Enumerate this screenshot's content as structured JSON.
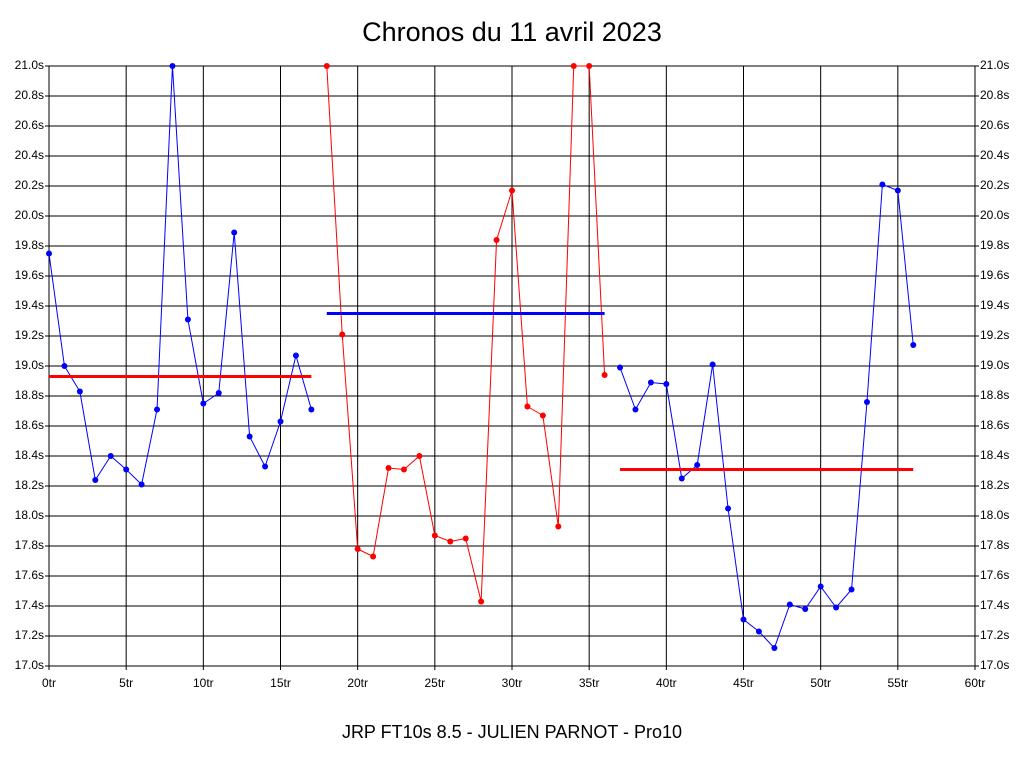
{
  "chart_data": {
    "type": "line",
    "title": "Chronos du 11 avril 2023",
    "footer": "JRP FT10s 8.5 - JULIEN PARNOT - Pro10",
    "grid": true,
    "xlim": [
      0,
      60
    ],
    "xticks": [
      {
        "value": 0,
        "label": "0tr"
      },
      {
        "value": 5,
        "label": "5tr"
      },
      {
        "value": 10,
        "label": "10tr"
      },
      {
        "value": 15,
        "label": "15tr"
      },
      {
        "value": 20,
        "label": "20tr"
      },
      {
        "value": 25,
        "label": "25tr"
      },
      {
        "value": 30,
        "label": "30tr"
      },
      {
        "value": 35,
        "label": "35tr"
      },
      {
        "value": 40,
        "label": "40tr"
      },
      {
        "value": 45,
        "label": "45tr"
      },
      {
        "value": 50,
        "label": "50tr"
      },
      {
        "value": 55,
        "label": "55tr"
      },
      {
        "value": 60,
        "label": "60tr"
      }
    ],
    "ylim": [
      17.0,
      21.0
    ],
    "yticks": [
      {
        "value": 17.0,
        "label": "17.0s"
      },
      {
        "value": 17.2,
        "label": "17.2s"
      },
      {
        "value": 17.4,
        "label": "17.4s"
      },
      {
        "value": 17.6,
        "label": "17.6s"
      },
      {
        "value": 17.8,
        "label": "17.8s"
      },
      {
        "value": 18.0,
        "label": "18.0s"
      },
      {
        "value": 18.2,
        "label": "18.2s"
      },
      {
        "value": 18.4,
        "label": "18.4s"
      },
      {
        "value": 18.6,
        "label": "18.6s"
      },
      {
        "value": 18.8,
        "label": "18.8s"
      },
      {
        "value": 19.0,
        "label": "19.0s"
      },
      {
        "value": 19.2,
        "label": "19.2s"
      },
      {
        "value": 19.4,
        "label": "19.4s"
      },
      {
        "value": 19.6,
        "label": "19.6s"
      },
      {
        "value": 19.8,
        "label": "19.8s"
      },
      {
        "value": 20.0,
        "label": "20.0s"
      },
      {
        "value": 20.2,
        "label": "20.2s"
      },
      {
        "value": 20.4,
        "label": "20.4s"
      },
      {
        "value": 20.6,
        "label": "20.6s"
      },
      {
        "value": 20.8,
        "label": "20.8s"
      },
      {
        "value": 21.0,
        "label": "21.0s"
      }
    ],
    "x": [
      0,
      1,
      2,
      3,
      4,
      5,
      6,
      7,
      8,
      9,
      10,
      11,
      12,
      13,
      14,
      15,
      16,
      17,
      18,
      19,
      20,
      21,
      22,
      23,
      24,
      25,
      26,
      27,
      28,
      29,
      30,
      31,
      32,
      33,
      34,
      35,
      36,
      37,
      38,
      39,
      40,
      41,
      42,
      43,
      44,
      45,
      46,
      47,
      48,
      49,
      50,
      51,
      52,
      53,
      54,
      55,
      56
    ],
    "series": [
      {
        "color": "#0000ff",
        "values": [
          19.75,
          19.0,
          18.83,
          18.24,
          18.4,
          18.31,
          18.21,
          18.71,
          21.0,
          19.31,
          18.75,
          18.82,
          19.89,
          18.53,
          18.33,
          18.63,
          19.07,
          18.71,
          null,
          null,
          null,
          null,
          null,
          null,
          null,
          null,
          null,
          null,
          null,
          null,
          null,
          null,
          null,
          null,
          null,
          null,
          null,
          null,
          null,
          null,
          null,
          null,
          null,
          null,
          null,
          null,
          null,
          null,
          null,
          null,
          null,
          null,
          null,
          null,
          null,
          null,
          null
        ]
      },
      {
        "color": "#ff0000",
        "values": [
          null,
          null,
          null,
          null,
          null,
          null,
          null,
          null,
          null,
          null,
          null,
          null,
          null,
          null,
          null,
          null,
          null,
          null,
          21.0,
          19.21,
          17.78,
          17.73,
          18.32,
          18.31,
          18.4,
          17.87,
          17.83,
          17.85,
          17.43,
          19.84,
          20.17,
          18.73,
          18.67,
          17.93,
          21.0,
          21.0,
          18.94,
          null,
          null,
          null,
          null,
          null,
          null,
          null,
          null,
          null,
          null,
          null,
          null,
          null,
          null,
          null,
          null,
          null,
          null,
          null,
          null
        ]
      },
      {
        "color": "#0000ff",
        "values": [
          null,
          null,
          null,
          null,
          null,
          null,
          null,
          null,
          null,
          null,
          null,
          null,
          null,
          null,
          null,
          null,
          null,
          null,
          null,
          null,
          null,
          null,
          null,
          null,
          null,
          null,
          null,
          null,
          null,
          null,
          null,
          null,
          null,
          null,
          null,
          null,
          null,
          18.99,
          18.71,
          18.89,
          18.88,
          18.25,
          18.34,
          19.01,
          18.05,
          17.31,
          17.23,
          17.12,
          17.41,
          17.38,
          17.53,
          17.39,
          17.51,
          18.76,
          20.21,
          20.17,
          19.14
        ]
      }
    ],
    "averages": [
      {
        "color": "#ff0000",
        "x": [
          0,
          17
        ],
        "value": 18.93
      },
      {
        "color": "#0000ff",
        "x": [
          18,
          36
        ],
        "value": 19.35
      },
      {
        "color": "#ff0000",
        "x": [
          37,
          56
        ],
        "value": 18.31
      }
    ]
  }
}
